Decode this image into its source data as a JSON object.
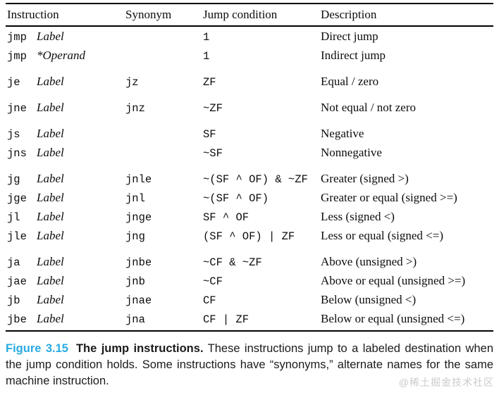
{
  "colors": {
    "figure_label_blue": "#29abe2",
    "watermark_gray": "#cbcbcb",
    "text": "#0d0d0d"
  },
  "table": {
    "headers": [
      "Instruction",
      "Synonym",
      "Jump condition",
      "Description"
    ],
    "rows": [
      {
        "mnemonic": "jmp",
        "operand": "Label",
        "synonym": "",
        "condition": "1",
        "description": "Direct jump"
      },
      {
        "mnemonic": "jmp",
        "operand": "*Operand",
        "synonym": "",
        "condition": "1",
        "description": "Indirect jump"
      },
      {
        "mnemonic": "je",
        "operand": "Label",
        "synonym": "jz",
        "condition": "ZF",
        "description": "Equal / zero"
      },
      {
        "mnemonic": "jne",
        "operand": "Label",
        "synonym": "jnz",
        "condition": "~ZF",
        "description": "Not equal / not zero"
      },
      {
        "mnemonic": "js",
        "operand": "Label",
        "synonym": "",
        "condition": "SF",
        "description": "Negative"
      },
      {
        "mnemonic": "jns",
        "operand": "Label",
        "synonym": "",
        "condition": "~SF",
        "description": "Nonnegative"
      },
      {
        "mnemonic": "jg",
        "operand": "Label",
        "synonym": "jnle",
        "condition": "~(SF ^ OF) & ~ZF",
        "description": "Greater (signed >)"
      },
      {
        "mnemonic": "jge",
        "operand": "Label",
        "synonym": "jnl",
        "condition": "~(SF ^ OF)",
        "description": "Greater or equal (signed >=)"
      },
      {
        "mnemonic": "jl",
        "operand": "Label",
        "synonym": "jnge",
        "condition": "SF ^ OF",
        "description": "Less (signed <)"
      },
      {
        "mnemonic": "jle",
        "operand": "Label",
        "synonym": "jng",
        "condition": "(SF ^ OF) | ZF",
        "description": "Less or equal (signed <=)"
      },
      {
        "mnemonic": "ja",
        "operand": "Label",
        "synonym": "jnbe",
        "condition": "~CF & ~ZF",
        "description": "Above (unsigned >)"
      },
      {
        "mnemonic": "jae",
        "operand": "Label",
        "synonym": "jnb",
        "condition": "~CF",
        "description": "Above or equal (unsigned >=)"
      },
      {
        "mnemonic": "jb",
        "operand": "Label",
        "synonym": "jnae",
        "condition": "CF",
        "description": "Below (unsigned <)"
      },
      {
        "mnemonic": "jbe",
        "operand": "Label",
        "synonym": "jna",
        "condition": "CF | ZF",
        "description": "Below or equal (unsigned <=)"
      }
    ]
  },
  "caption": {
    "figure_label": "Figure 3.15",
    "title": "The jump instructions.",
    "body": "These instructions jump to a labeled destination when the jump condition holds. Some instructions have “synonyms,” alternate names for the same machine instruction."
  },
  "watermark": "@稀土掘金技术社区"
}
